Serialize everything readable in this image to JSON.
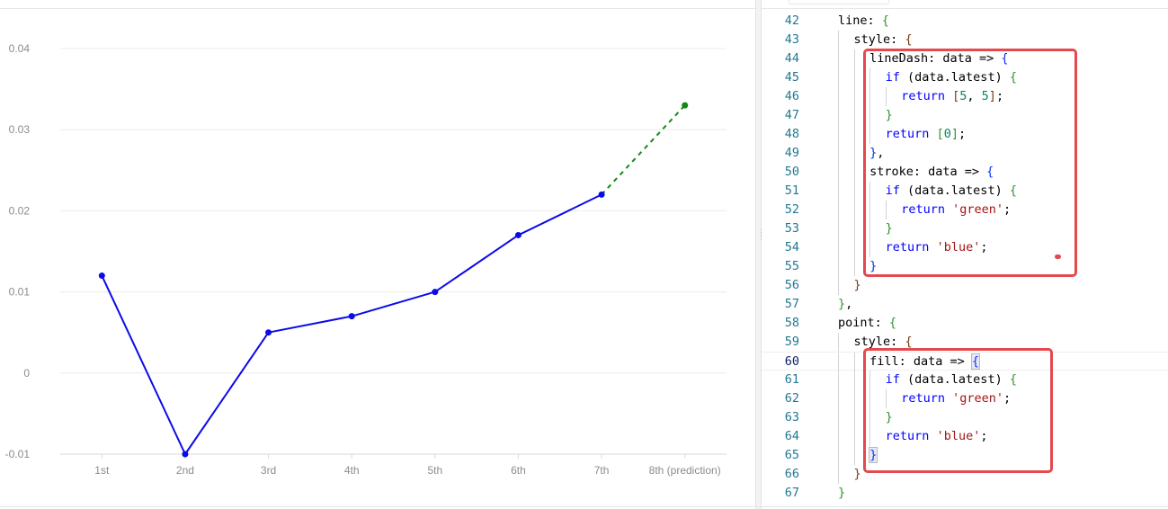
{
  "chart_data": {
    "type": "line",
    "categories": [
      "1st",
      "2nd",
      "3rd",
      "4th",
      "5th",
      "6th",
      "7th",
      "8th (prediction)"
    ],
    "values": [
      0.012,
      -0.01,
      0.005,
      0.007,
      0.01,
      0.017,
      0.022,
      0.033
    ],
    "latest_index": 7,
    "ylim": [
      -0.01,
      0.04
    ],
    "yticks": [
      "-0.01",
      "0",
      "0.01",
      "0.02",
      "0.03",
      "0.04"
    ],
    "ytick_values": [
      -0.01,
      0,
      0.01,
      0.02,
      0.03,
      0.04
    ],
    "grid": true,
    "colors": {
      "normal": "#0b0bea",
      "latest": "#128a12",
      "grid": "#ececec",
      "axis": "#d9d9d9"
    },
    "line_dash_latest": [
      5,
      5
    ]
  },
  "editor": {
    "lines": [
      {
        "n": "42",
        "indent": 0,
        "code": [
          {
            "t": "line: "
          },
          {
            "t": "{",
            "c": "tok-b1"
          }
        ]
      },
      {
        "n": "43",
        "indent": 1,
        "code": [
          {
            "t": "style: "
          },
          {
            "t": "{",
            "c": "tok-b2"
          }
        ]
      },
      {
        "n": "44",
        "indent": 2,
        "code": [
          {
            "t": "lineDash: data => "
          },
          {
            "t": "{",
            "c": "tok-b3"
          }
        ]
      },
      {
        "n": "45",
        "indent": 3,
        "code": [
          {
            "t": "if",
            "c": "tok-kw"
          },
          {
            "t": " (data.latest) "
          },
          {
            "t": "{",
            "c": "tok-b1"
          }
        ]
      },
      {
        "n": "46",
        "indent": 4,
        "code": [
          {
            "t": "return",
            "c": "tok-kw"
          },
          {
            "t": " "
          },
          {
            "t": "[",
            "c": "tok-b2"
          },
          {
            "t": "5",
            "c": "tok-num"
          },
          {
            "t": ", "
          },
          {
            "t": "5",
            "c": "tok-num"
          },
          {
            "t": "]",
            "c": "tok-b2"
          },
          {
            "t": ";"
          }
        ]
      },
      {
        "n": "47",
        "indent": 3,
        "code": [
          {
            "t": "}",
            "c": "tok-b1"
          }
        ]
      },
      {
        "n": "48",
        "indent": 3,
        "code": [
          {
            "t": "return",
            "c": "tok-kw"
          },
          {
            "t": " "
          },
          {
            "t": "[",
            "c": "tok-b1"
          },
          {
            "t": "0",
            "c": "tok-num"
          },
          {
            "t": "]",
            "c": "tok-b1"
          },
          {
            "t": ";"
          }
        ]
      },
      {
        "n": "49",
        "indent": 2,
        "code": [
          {
            "t": "}",
            "c": "tok-b3"
          },
          {
            "t": ","
          }
        ]
      },
      {
        "n": "50",
        "indent": 2,
        "code": [
          {
            "t": "stroke: data => "
          },
          {
            "t": "{",
            "c": "tok-b3"
          }
        ]
      },
      {
        "n": "51",
        "indent": 3,
        "code": [
          {
            "t": "if",
            "c": "tok-kw"
          },
          {
            "t": " (data.latest) "
          },
          {
            "t": "{",
            "c": "tok-b1"
          }
        ]
      },
      {
        "n": "52",
        "indent": 4,
        "code": [
          {
            "t": "return",
            "c": "tok-kw"
          },
          {
            "t": " "
          },
          {
            "t": "'green'",
            "c": "tok-str"
          },
          {
            "t": ";"
          }
        ]
      },
      {
        "n": "53",
        "indent": 3,
        "code": [
          {
            "t": "}",
            "c": "tok-b1"
          }
        ]
      },
      {
        "n": "54",
        "indent": 3,
        "code": [
          {
            "t": "return",
            "c": "tok-kw"
          },
          {
            "t": " "
          },
          {
            "t": "'blue'",
            "c": "tok-str"
          },
          {
            "t": ";"
          }
        ]
      },
      {
        "n": "55",
        "indent": 2,
        "code": [
          {
            "t": "}",
            "c": "tok-b3"
          }
        ]
      },
      {
        "n": "56",
        "indent": 1,
        "code": [
          {
            "t": "}",
            "c": "tok-b2"
          }
        ]
      },
      {
        "n": "57",
        "indent": 0,
        "code": [
          {
            "t": "}",
            "c": "tok-b1"
          },
          {
            "t": ","
          }
        ]
      },
      {
        "n": "58",
        "indent": 0,
        "code": [
          {
            "t": "point: "
          },
          {
            "t": "{",
            "c": "tok-b1"
          }
        ]
      },
      {
        "n": "59",
        "indent": 1,
        "code": [
          {
            "t": "style: "
          },
          {
            "t": "{",
            "c": "tok-b2"
          }
        ]
      },
      {
        "n": "60",
        "indent": 2,
        "code": [
          {
            "t": "fill: data => "
          },
          {
            "t": "{",
            "c": "tok-b3 bracket-match"
          }
        ],
        "current": true
      },
      {
        "n": "61",
        "indent": 3,
        "code": [
          {
            "t": "if",
            "c": "tok-kw"
          },
          {
            "t": " (data.latest) "
          },
          {
            "t": "{",
            "c": "tok-b1"
          }
        ]
      },
      {
        "n": "62",
        "indent": 4,
        "code": [
          {
            "t": "return",
            "c": "tok-kw"
          },
          {
            "t": " "
          },
          {
            "t": "'green'",
            "c": "tok-str"
          },
          {
            "t": ";"
          }
        ]
      },
      {
        "n": "63",
        "indent": 3,
        "code": [
          {
            "t": "}",
            "c": "tok-b1"
          }
        ]
      },
      {
        "n": "64",
        "indent": 3,
        "code": [
          {
            "t": "return",
            "c": "tok-kw"
          },
          {
            "t": " "
          },
          {
            "t": "'blue'",
            "c": "tok-str"
          },
          {
            "t": ";"
          }
        ]
      },
      {
        "n": "65",
        "indent": 2,
        "code": [
          {
            "t": "}",
            "c": "tok-b3 bracket-match"
          }
        ]
      },
      {
        "n": "66",
        "indent": 1,
        "code": [
          {
            "t": "}",
            "c": "tok-b2"
          }
        ]
      },
      {
        "n": "67",
        "indent": 0,
        "code": [
          {
            "t": "}",
            "c": "tok-b1"
          }
        ]
      }
    ]
  },
  "annotation_color": "#e5484d"
}
